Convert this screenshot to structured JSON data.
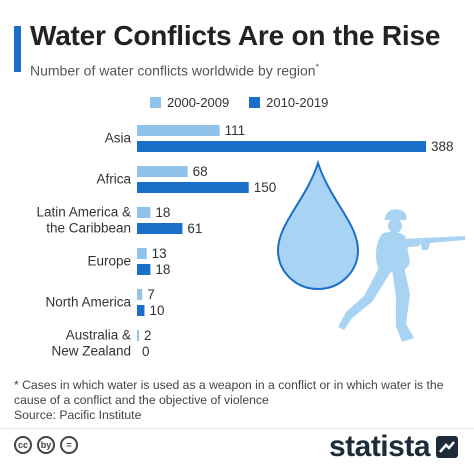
{
  "header": {
    "title": "Water Conflicts Are on the Rise",
    "subtitle": "Number of water conflicts worldwide by region",
    "subtitle_mark": "*"
  },
  "chart_data": {
    "type": "bar",
    "orientation": "horizontal",
    "categories": [
      "Asia",
      "Africa",
      "Latin America & the Caribbean",
      "Europe",
      "North America",
      "Australia & New Zealand"
    ],
    "category_lines": [
      [
        "Asia"
      ],
      [
        "Africa"
      ],
      [
        "Latin America &",
        "the Caribbean"
      ],
      [
        "Europe"
      ],
      [
        "North America"
      ],
      [
        "Australia &",
        "New Zealand"
      ]
    ],
    "series": [
      {
        "name": "2000-2009",
        "color": "#8fc3ea",
        "values": [
          111,
          68,
          18,
          13,
          7,
          2
        ]
      },
      {
        "name": "2010-2019",
        "color": "#1a6fc9",
        "values": [
          388,
          150,
          61,
          18,
          10,
          0
        ]
      }
    ],
    "data_labels": true,
    "legend_position": "top",
    "grid": false
  },
  "illustration": {
    "icons": [
      "water-drop-icon",
      "soldier-with-rifle-icon"
    ],
    "drop_color": "#a9d3f2",
    "drop_outline": "#1a6fc9",
    "soldier_color": "#a9d3f2"
  },
  "footer": {
    "footnote": "* Cases in which water is used as a weapon in a conflict or in which water is the cause of a conflict and the objective of violence",
    "source": "Source: Pacific Institute",
    "license_icons": [
      "cc",
      "by",
      "="
    ],
    "brand": "statista"
  },
  "colors": {
    "accent": "#1a6fc9",
    "light": "#8fc3ea",
    "text": "#222222"
  }
}
